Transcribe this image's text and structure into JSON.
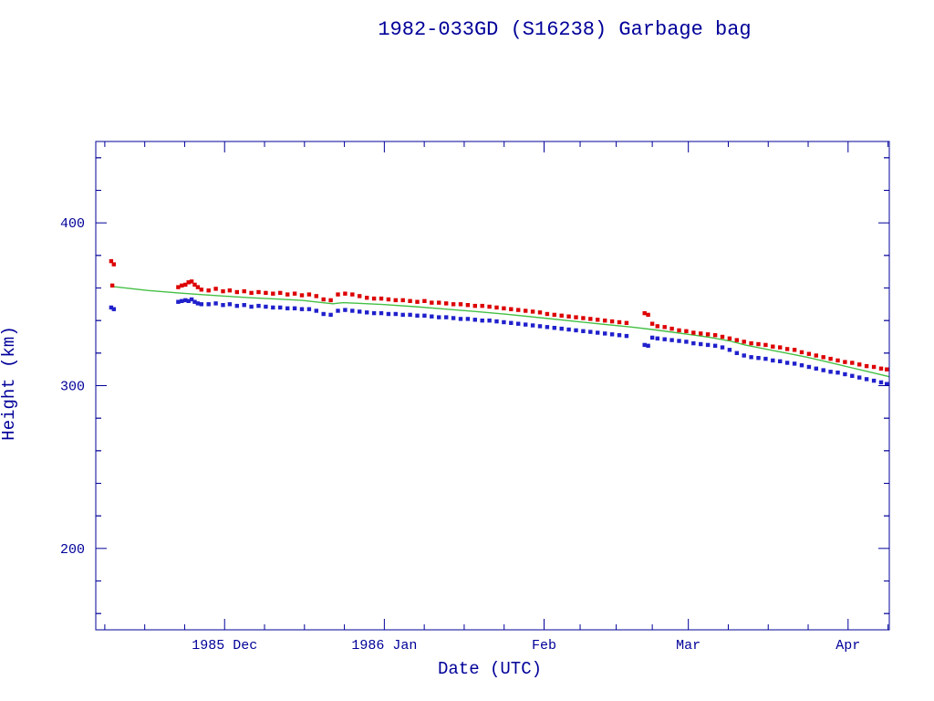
{
  "page": {
    "background": "#ffffff"
  },
  "chart_data": {
    "type": "scatter",
    "title": "1982-033GD (S16238) Garbage bag",
    "xlabel": "Date (UTC)",
    "ylabel": "Height (km)",
    "x_unit": "days since 1985-11-06",
    "xlim": [
      0,
      154
    ],
    "ylim": [
      150,
      450
    ],
    "grid": false,
    "legend": "none",
    "yticks": [
      {
        "value": 200,
        "label": "200"
      },
      {
        "value": 300,
        "label": "300"
      },
      {
        "value": 400,
        "label": "400"
      }
    ],
    "xticks": [
      {
        "day": 25,
        "label": "1985 Dec"
      },
      {
        "day": 56,
        "label": "1986 Jan"
      },
      {
        "day": 87,
        "label": "Feb"
      },
      {
        "day": 115,
        "label": "Mar"
      },
      {
        "day": 146,
        "label": "Apr"
      }
    ],
    "colors": {
      "frame": "#000099",
      "text": "#000099",
      "apogee": "#dd0000",
      "perigee": "#2020cc",
      "fit": "#44c044"
    },
    "series": [
      {
        "name": "apogee-height",
        "marker": "square",
        "color": "#dd0000",
        "points": [
          [
            3.0,
            376.5
          ],
          [
            3.5,
            374.5
          ],
          [
            3.2,
            361.5
          ],
          [
            16.0,
            360.5
          ],
          [
            16.7,
            361.5
          ],
          [
            17.4,
            362.0
          ],
          [
            18.0,
            363.5
          ],
          [
            18.6,
            364.0
          ],
          [
            19.2,
            362.0
          ],
          [
            19.8,
            360.5
          ],
          [
            20.5,
            359.0
          ],
          [
            21.9,
            358.5
          ],
          [
            23.3,
            359.5
          ],
          [
            24.7,
            358.0
          ],
          [
            26.0,
            358.5
          ],
          [
            27.4,
            357.5
          ],
          [
            28.8,
            358.0
          ],
          [
            30.2,
            357.0
          ],
          [
            31.6,
            357.5
          ],
          [
            33.0,
            357.0
          ],
          [
            34.4,
            356.5
          ],
          [
            35.8,
            357.0
          ],
          [
            37.2,
            356.0
          ],
          [
            38.6,
            356.5
          ],
          [
            40.0,
            355.5
          ],
          [
            41.4,
            356.0
          ],
          [
            42.8,
            355.0
          ],
          [
            44.2,
            353.0
          ],
          [
            45.6,
            352.5
          ],
          [
            47.0,
            356.0
          ],
          [
            48.4,
            356.5
          ],
          [
            49.8,
            356.0
          ],
          [
            51.2,
            355.0
          ],
          [
            52.6,
            354.0
          ],
          [
            54.0,
            353.5
          ],
          [
            55.4,
            353.5
          ],
          [
            56.8,
            353.0
          ],
          [
            58.2,
            352.5
          ],
          [
            59.6,
            352.5
          ],
          [
            61.0,
            352.0
          ],
          [
            62.4,
            351.5
          ],
          [
            63.8,
            352.0
          ],
          [
            65.2,
            351.0
          ],
          [
            66.6,
            351.0
          ],
          [
            68.0,
            350.5
          ],
          [
            69.4,
            350.0
          ],
          [
            70.8,
            350.0
          ],
          [
            72.2,
            349.5
          ],
          [
            73.6,
            349.0
          ],
          [
            75.0,
            349.0
          ],
          [
            76.4,
            348.5
          ],
          [
            77.8,
            348.0
          ],
          [
            79.2,
            347.5
          ],
          [
            80.6,
            347.0
          ],
          [
            82.0,
            346.5
          ],
          [
            83.4,
            346.0
          ],
          [
            84.8,
            345.5
          ],
          [
            86.2,
            345.0
          ],
          [
            87.6,
            344.0
          ],
          [
            89.0,
            343.5
          ],
          [
            90.4,
            343.0
          ],
          [
            91.8,
            342.5
          ],
          [
            93.2,
            342.0
          ],
          [
            94.6,
            341.5
          ],
          [
            96.0,
            341.0
          ],
          [
            97.4,
            340.5
          ],
          [
            98.8,
            340.0
          ],
          [
            100.2,
            339.5
          ],
          [
            101.6,
            339.0
          ],
          [
            103.0,
            338.5
          ],
          [
            106.5,
            344.5
          ],
          [
            107.2,
            343.5
          ],
          [
            108.0,
            338.0
          ],
          [
            109.0,
            336.5
          ],
          [
            110.4,
            336.0
          ],
          [
            111.8,
            335.0
          ],
          [
            113.2,
            334.0
          ],
          [
            114.6,
            333.5
          ],
          [
            116.0,
            332.5
          ],
          [
            117.4,
            332.0
          ],
          [
            118.8,
            331.5
          ],
          [
            120.2,
            331.0
          ],
          [
            121.6,
            330.0
          ],
          [
            123.0,
            329.0
          ],
          [
            124.4,
            328.0
          ],
          [
            125.8,
            327.0
          ],
          [
            127.2,
            326.0
          ],
          [
            128.6,
            325.5
          ],
          [
            130.0,
            325.0
          ],
          [
            131.4,
            324.0
          ],
          [
            132.8,
            323.5
          ],
          [
            134.2,
            322.5
          ],
          [
            135.6,
            322.0
          ],
          [
            137.0,
            320.5
          ],
          [
            138.4,
            319.5
          ],
          [
            139.8,
            318.5
          ],
          [
            141.2,
            317.5
          ],
          [
            142.6,
            316.5
          ],
          [
            144.0,
            315.5
          ],
          [
            145.4,
            314.5
          ],
          [
            146.8,
            314.0
          ],
          [
            148.2,
            313.0
          ],
          [
            149.6,
            312.0
          ],
          [
            151.0,
            311.5
          ],
          [
            152.4,
            310.5
          ],
          [
            153.5,
            310.0
          ]
        ]
      },
      {
        "name": "perigee-height",
        "marker": "square",
        "color": "#2020cc",
        "points": [
          [
            3.0,
            348.0
          ],
          [
            3.5,
            347.0
          ],
          [
            16.0,
            351.5
          ],
          [
            16.7,
            352.0
          ],
          [
            17.4,
            352.5
          ],
          [
            18.0,
            352.0
          ],
          [
            18.6,
            353.0
          ],
          [
            19.2,
            351.5
          ],
          [
            19.8,
            350.5
          ],
          [
            20.5,
            350.0
          ],
          [
            21.9,
            350.0
          ],
          [
            23.3,
            350.5
          ],
          [
            24.7,
            349.5
          ],
          [
            26.0,
            350.0
          ],
          [
            27.4,
            349.0
          ],
          [
            28.8,
            349.5
          ],
          [
            30.2,
            348.5
          ],
          [
            31.6,
            349.0
          ],
          [
            33.0,
            348.5
          ],
          [
            34.4,
            348.0
          ],
          [
            35.8,
            348.0
          ],
          [
            37.2,
            347.5
          ],
          [
            38.6,
            347.5
          ],
          [
            40.0,
            347.0
          ],
          [
            41.4,
            347.0
          ],
          [
            42.8,
            346.0
          ],
          [
            44.2,
            344.0
          ],
          [
            45.6,
            343.5
          ],
          [
            47.0,
            346.0
          ],
          [
            48.4,
            346.5
          ],
          [
            49.8,
            346.0
          ],
          [
            51.2,
            345.5
          ],
          [
            52.6,
            345.0
          ],
          [
            54.0,
            344.5
          ],
          [
            55.4,
            344.5
          ],
          [
            56.8,
            344.0
          ],
          [
            58.2,
            344.0
          ],
          [
            59.6,
            343.5
          ],
          [
            61.0,
            343.5
          ],
          [
            62.4,
            343.0
          ],
          [
            63.8,
            343.0
          ],
          [
            65.2,
            342.5
          ],
          [
            66.6,
            342.0
          ],
          [
            68.0,
            342.0
          ],
          [
            69.4,
            341.5
          ],
          [
            70.8,
            341.0
          ],
          [
            72.2,
            341.0
          ],
          [
            73.6,
            340.5
          ],
          [
            75.0,
            340.0
          ],
          [
            76.4,
            340.0
          ],
          [
            77.8,
            339.5
          ],
          [
            79.2,
            339.0
          ],
          [
            80.6,
            338.5
          ],
          [
            82.0,
            338.0
          ],
          [
            83.4,
            337.5
          ],
          [
            84.8,
            337.0
          ],
          [
            86.2,
            336.5
          ],
          [
            87.6,
            336.0
          ],
          [
            89.0,
            335.5
          ],
          [
            90.4,
            335.0
          ],
          [
            91.8,
            334.5
          ],
          [
            93.2,
            334.0
          ],
          [
            94.6,
            333.5
          ],
          [
            96.0,
            333.0
          ],
          [
            97.4,
            332.5
          ],
          [
            98.8,
            332.0
          ],
          [
            100.2,
            331.5
          ],
          [
            101.6,
            331.0
          ],
          [
            103.0,
            330.5
          ],
          [
            106.5,
            325.0
          ],
          [
            107.2,
            324.5
          ],
          [
            108.0,
            329.5
          ],
          [
            109.0,
            329.0
          ],
          [
            110.4,
            328.5
          ],
          [
            111.8,
            328.0
          ],
          [
            113.2,
            327.5
          ],
          [
            114.6,
            327.0
          ],
          [
            116.0,
            326.0
          ],
          [
            117.4,
            325.5
          ],
          [
            118.8,
            325.0
          ],
          [
            120.2,
            324.5
          ],
          [
            121.6,
            323.5
          ],
          [
            123.0,
            322.0
          ],
          [
            124.4,
            320.0
          ],
          [
            125.8,
            318.5
          ],
          [
            127.2,
            317.5
          ],
          [
            128.6,
            317.0
          ],
          [
            130.0,
            316.5
          ],
          [
            131.4,
            315.5
          ],
          [
            132.8,
            315.0
          ],
          [
            134.2,
            314.0
          ],
          [
            135.6,
            313.5
          ],
          [
            137.0,
            312.5
          ],
          [
            138.4,
            311.5
          ],
          [
            139.8,
            310.5
          ],
          [
            141.2,
            309.5
          ],
          [
            142.6,
            308.5
          ],
          [
            144.0,
            308.0
          ],
          [
            145.4,
            307.0
          ],
          [
            146.8,
            306.0
          ],
          [
            148.2,
            305.0
          ],
          [
            149.6,
            304.0
          ],
          [
            151.0,
            303.0
          ],
          [
            152.4,
            302.0
          ],
          [
            153.5,
            301.0
          ]
        ]
      },
      {
        "name": "mean-height-fit",
        "marker": "line",
        "color": "#44c044",
        "points": [
          [
            3,
            361
          ],
          [
            10,
            358.5
          ],
          [
            16,
            357
          ],
          [
            20,
            356
          ],
          [
            25,
            355
          ],
          [
            30,
            354
          ],
          [
            35,
            353.2
          ],
          [
            40,
            352.4
          ],
          [
            44,
            351
          ],
          [
            46,
            350.3
          ],
          [
            48,
            351
          ],
          [
            51,
            350.6
          ],
          [
            56,
            349.8
          ],
          [
            62,
            348.5
          ],
          [
            68,
            347
          ],
          [
            74,
            345.5
          ],
          [
            80,
            343.8
          ],
          [
            87,
            341.5
          ],
          [
            93,
            339.5
          ],
          [
            99,
            337.5
          ],
          [
            104,
            336
          ],
          [
            108,
            334.5
          ],
          [
            112,
            332.8
          ],
          [
            115,
            331.5
          ],
          [
            119,
            329.8
          ],
          [
            123,
            327.5
          ],
          [
            126,
            325
          ],
          [
            130,
            322.5
          ],
          [
            134,
            320
          ],
          [
            138,
            317.5
          ],
          [
            142,
            314.5
          ],
          [
            146,
            311.5
          ],
          [
            150,
            308.5
          ],
          [
            154,
            305.5
          ]
        ]
      }
    ]
  }
}
